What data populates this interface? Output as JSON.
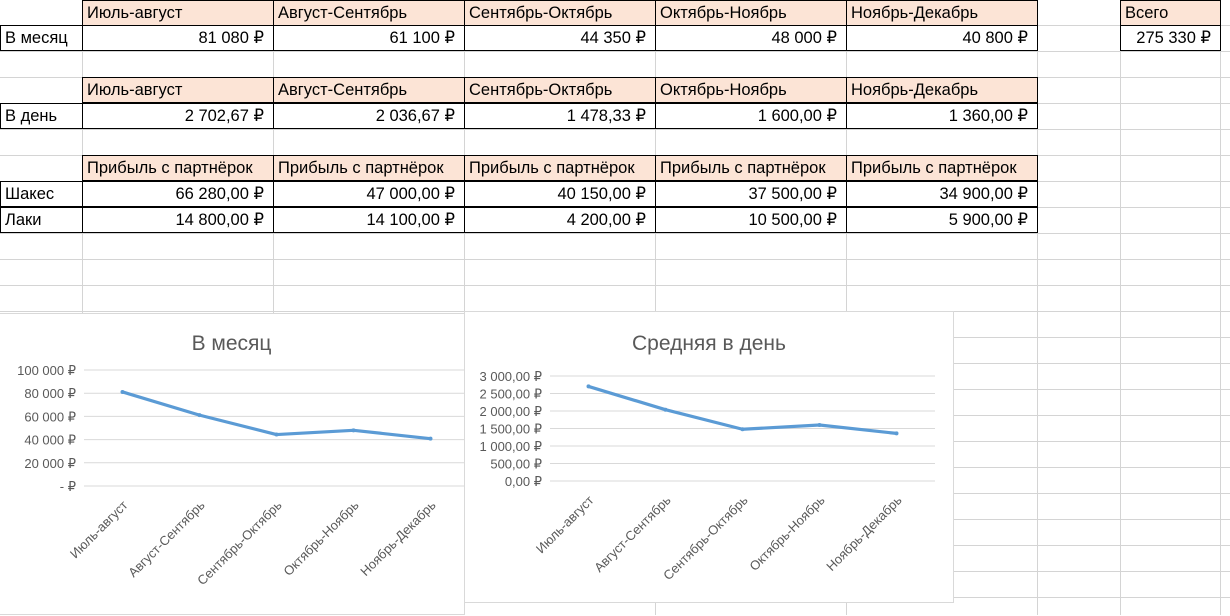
{
  "table_month": {
    "headers": [
      "Июль-август",
      "Август-Сентябрь",
      "Сентябрь-Октябрь",
      "Октябрь-Ноябрь",
      "Ноябрь-Декабрь"
    ],
    "row_label": "В месяц",
    "values": [
      "81 080 ₽",
      "61 100 ₽",
      "44 350 ₽",
      "48 000 ₽",
      "40 800 ₽"
    ],
    "total_header": "Всего",
    "total_value": "275 330 ₽"
  },
  "table_day": {
    "headers": [
      "Июль-август",
      "Август-Сентябрь",
      "Сентябрь-Октябрь",
      "Октябрь-Ноябрь",
      "Ноябрь-Декабрь"
    ],
    "row_label": "В день",
    "values": [
      "2 702,67 ₽",
      "2 036,67 ₽",
      "1 478,33 ₽",
      "1 600,00 ₽",
      "1 360,00 ₽"
    ]
  },
  "table_partner": {
    "headers": [
      "Прибыль с партнёрок",
      "Прибыль с партнёрок",
      "Прибыль с партнёрок",
      "Прибыль с партнёрок",
      "Прибыль с партнёрок"
    ],
    "rows": [
      {
        "label": "Шакес",
        "values": [
          "66 280,00 ₽",
          "47 000,00 ₽",
          "40 150,00 ₽",
          "37 500,00 ₽",
          "34 900,00 ₽"
        ]
      },
      {
        "label": "Лаки",
        "values": [
          "14 800,00 ₽",
          "14 100,00 ₽",
          "4 200,00 ₽",
          "10 500,00 ₽",
          "5 900,00 ₽"
        ]
      }
    ]
  },
  "chart_data": [
    {
      "type": "line",
      "title": "В месяц",
      "categories": [
        "Июль-август",
        "Август-Сентябрь",
        "Сентябрь-Октябрь",
        "Октябрь-Ноябрь",
        "Ноябрь-Декабрь"
      ],
      "values": [
        81080,
        61100,
        44350,
        48000,
        40800
      ],
      "ylim": [
        0,
        100000
      ],
      "yticks": [
        0,
        20000,
        40000,
        60000,
        80000,
        100000
      ],
      "ytick_labels": [
        "- ₽",
        "20 000 ₽",
        "40 000 ₽",
        "60 000 ₽",
        "80 000 ₽",
        "100 000 ₽"
      ],
      "xlabel": "",
      "ylabel": "",
      "grid": true,
      "line_color": "#5b9bd5"
    },
    {
      "type": "line",
      "title": "Средняя в день",
      "categories": [
        "Июль-август",
        "Август-Сентябрь",
        "Сентябрь-Октябрь",
        "Октябрь-Ноябрь",
        "Ноябрь-Декабрь"
      ],
      "values": [
        2702.67,
        2036.67,
        1478.33,
        1600.0,
        1360.0
      ],
      "ylim": [
        0,
        3000
      ],
      "yticks": [
        0,
        500,
        1000,
        1500,
        2000,
        2500,
        3000
      ],
      "ytick_labels": [
        "0,00 ₽",
        "500,00 ₽",
        "1 000,00 ₽",
        "1 500,00 ₽",
        "2 000,00 ₽",
        "2 500,00 ₽",
        "3 000,00 ₽"
      ],
      "xlabel": "",
      "ylabel": "",
      "grid": true,
      "line_color": "#5b9bd5"
    }
  ],
  "colors": {
    "header_fill": "#fce4d6",
    "gridline": "#d4d4d4",
    "series": "#5b9bd5"
  }
}
